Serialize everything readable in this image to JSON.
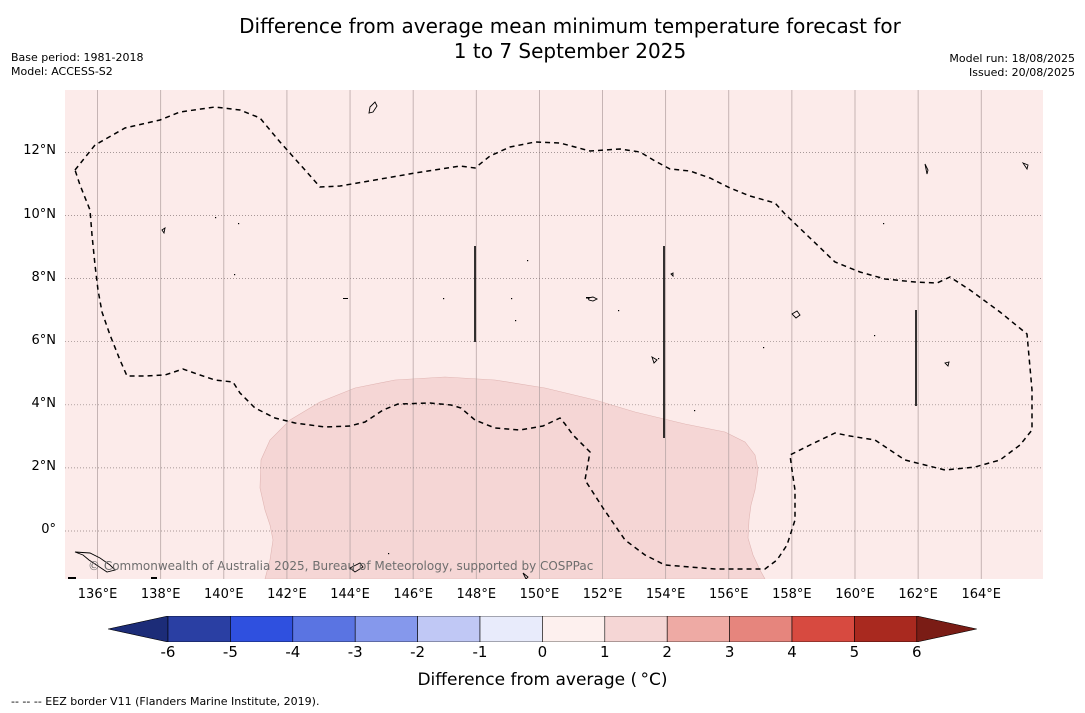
{
  "title": {
    "line1": "Difference from average mean minimum temperature forecast for",
    "line2": "1 to 7 September 2025"
  },
  "meta_left": {
    "base_period": "Base period: 1981-2018",
    "model": "Model: ACCESS-S2"
  },
  "meta_right": {
    "model_run": "Model run: 18/08/2025",
    "issued": "Issued: 20/08/2025"
  },
  "map": {
    "lon_range": [
      135,
      166
    ],
    "lat_range": [
      -1.5,
      14
    ],
    "ocean_color": "#fcebea",
    "anomaly_color": "#f5d6d5",
    "gridlines": true,
    "lon_ticks": [
      "136°E",
      "138°E",
      "140°E",
      "142°E",
      "144°E",
      "146°E",
      "148°E",
      "150°E",
      "152°E",
      "154°E",
      "156°E",
      "158°E",
      "160°E",
      "162°E",
      "164°E"
    ],
    "lon_values": [
      136,
      138,
      140,
      142,
      144,
      146,
      148,
      150,
      152,
      154,
      156,
      158,
      160,
      162,
      164
    ],
    "lat_ticks": [
      "0°",
      "2°N",
      "4°N",
      "6°N",
      "8°N",
      "10°N",
      "12°N"
    ],
    "lat_values": [
      0,
      2,
      4,
      6,
      8,
      10,
      12
    ],
    "copyright": "© Commonwealth of Australia 2025, Bureau of Meteorology, supported by COSPPac"
  },
  "colorbar": {
    "title": "Difference from average ( °C)",
    "labels": [
      "-6",
      "-5",
      "-4",
      "-3",
      "-2",
      "-1",
      "0",
      "1",
      "2",
      "3",
      "4",
      "5",
      "6"
    ],
    "bins": [
      "#2a3fa3",
      "#2f50df",
      "#5a74e2",
      "#8598ec",
      "#c0c8f5",
      "#e8ebfb",
      "#fdf0ee",
      "#f5d6d5",
      "#eeaaa4",
      "#e6857d",
      "#d74a40",
      "#a9291f"
    ],
    "under_color": "#1c2c78",
    "over_color": "#7a1c15"
  },
  "footnote": "--  --  -- EEZ border V11 (Flanders Marine Institute, 2019)."
}
